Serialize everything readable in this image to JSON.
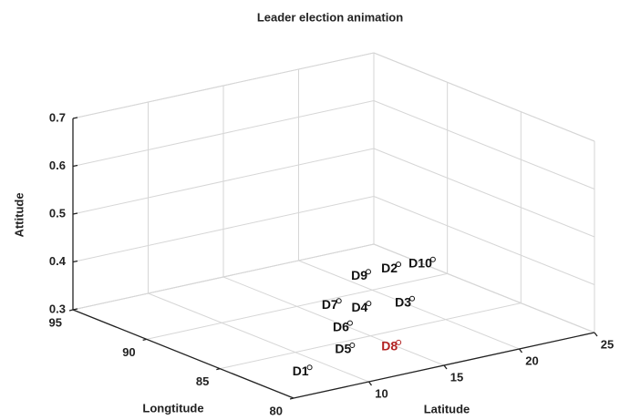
{
  "chart_data": {
    "type": "scatter",
    "title": "Leader election animation",
    "xlabel": "Latitude",
    "ylabel": "Longtitude",
    "zlabel": "Attitude",
    "xlim": [
      5,
      25
    ],
    "xticks": [
      10,
      15,
      20,
      25
    ],
    "ylim": [
      80,
      95
    ],
    "yticks": [
      80,
      85,
      90,
      95
    ],
    "zlim": [
      0.3,
      0.7
    ],
    "zticks": [
      0.3,
      0.4,
      0.5,
      0.6,
      0.7
    ],
    "grid": true,
    "labels": [
      "D1",
      "D2",
      "D3",
      "D4",
      "D5",
      "D6",
      "D7",
      "D8",
      "D9",
      "D10"
    ],
    "x": [
      9.0,
      23.9,
      20.8,
      18.4,
      13.2,
      15.5,
      17.4,
      15.5,
      21.8,
      25.9
    ],
    "y": [
      83.0,
      92.2,
      88.1,
      88.6,
      84.4,
      86.9,
      89.6,
      83.6,
      92.1,
      91.9
    ],
    "z": [
      0.3,
      0.3,
      0.3,
      0.3,
      0.3,
      0.3,
      0.3,
      0.3,
      0.3,
      0.3
    ],
    "colors": [
      "#111111",
      "#111111",
      "#111111",
      "#111111",
      "#111111",
      "#111111",
      "#111111",
      "#b22222",
      "#111111",
      "#111111"
    ]
  }
}
